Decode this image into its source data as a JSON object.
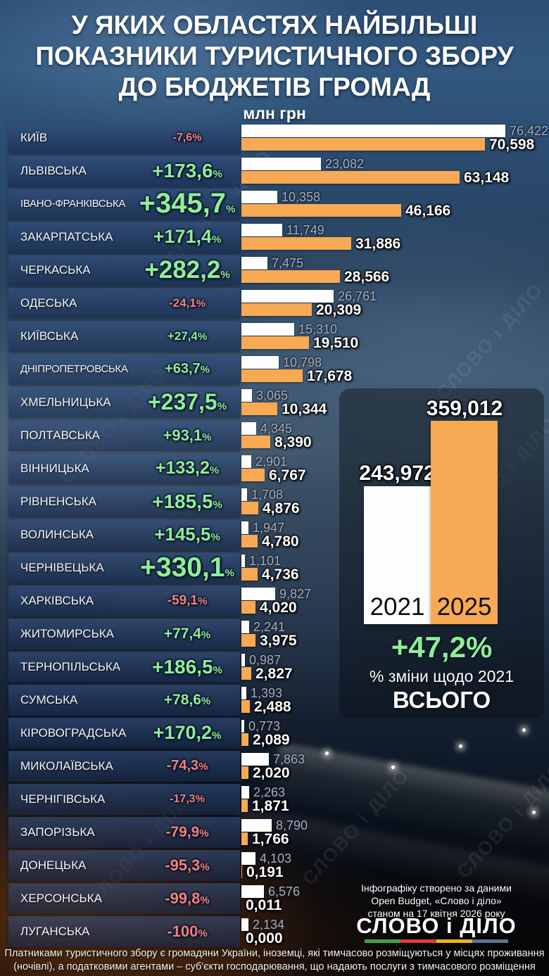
{
  "title": {
    "lines": [
      "У ЯКИХ ОБЛАСТЯХ НАЙБІЛЬШІ",
      "ПОКАЗНИКИ ТУРИСТИЧНОГО ЗБОРУ",
      "ДО БЮДЖЕТІВ ГРОМАД"
    ],
    "unit": "млн грн"
  },
  "watermark": "СЛОВО і ДІЛО",
  "chart_data": {
    "type": "bar",
    "title": "У яких областях найбільші показники туристичного збору до бюджетів громад",
    "unit": "млн грн",
    "categories": [
      "КИЇВ",
      "ЛЬВІВСЬКА",
      "ІВАНО-ФРАНКІВСЬКА",
      "ЗАКАРПАТСЬКА",
      "ЧЕРКАСЬКА",
      "ОДЕСЬКА",
      "КИЇВСЬКА",
      "ДНІПРОПЕТРОВСЬКА",
      "ХМЕЛЬНИЦЬКА",
      "ПОЛТАВСЬКА",
      "ВІННИЦЬКА",
      "РІВНЕНСЬКА",
      "ВОЛИНСЬКА",
      "ЧЕРНІВЕЦЬКА",
      "ХАРКІВСЬКА",
      "ЖИТОМИРСЬКА",
      "ТЕРНОПІЛЬСЬКА",
      "СУМСЬКА",
      "КІРОВОГРАДСЬКА",
      "МИКОЛАЇВСЬКА",
      "ЧЕРНІГІВСЬКА",
      "ЗАПОРІЗЬКА",
      "ДОНЕЦЬКА",
      "ХЕРСОНСЬКА",
      "ЛУГАНСЬКА"
    ],
    "series": [
      {
        "name": "2021",
        "color": "#fdfdfd",
        "values": [
          76.422,
          23.082,
          10.358,
          11.749,
          7.475,
          26.761,
          15.31,
          10.798,
          3.065,
          4.345,
          2.901,
          1.708,
          1.947,
          1.101,
          9.827,
          2.241,
          0.987,
          1.393,
          0.773,
          7.863,
          2.263,
          8.79,
          4.103,
          6.576,
          2.134
        ]
      },
      {
        "name": "2025",
        "color": "#f7a954",
        "values": [
          70.598,
          63.148,
          46.166,
          31.886,
          28.566,
          20.309,
          19.51,
          17.678,
          10.344,
          8.39,
          6.767,
          4.876,
          4.78,
          4.736,
          4.02,
          3.975,
          2.827,
          2.488,
          2.089,
          2.02,
          1.871,
          1.766,
          0.191,
          0.011,
          0.0
        ]
      }
    ],
    "change_pct": [
      -7.6,
      173.6,
      345.7,
      171.4,
      282.2,
      -24.1,
      27.4,
      63.7,
      237.5,
      93.1,
      133.2,
      185.5,
      145.5,
      330.1,
      -59.1,
      77.4,
      186.5,
      78.6,
      170.2,
      -74.3,
      -17.3,
      -79.9,
      -95.3,
      -99.8,
      -100
    ],
    "totals": {
      "y2021": 243.972,
      "y2025": 359.012,
      "change_pct": 47.2
    },
    "legend_position": "summary-panel",
    "grid": false
  },
  "summary": {
    "year_left": "2021",
    "year_right": "2025",
    "change_note": "% зміни щодо 2021",
    "total_label": "ВСЬОГО"
  },
  "credit": {
    "line1": "Інфографіку створено за даними",
    "line2": "Open Budget, «Слово і діло»",
    "line3": "станом на 17 квітня 2026 року"
  },
  "logo": {
    "text": "СЛОВО і ДІЛО",
    "underline_colors": [
      "#3fa44a",
      "#e03a36",
      "#eeb31b",
      "#5a7390"
    ]
  },
  "footer": "Платниками туристичного збору є громадяни України, іноземці, які тимчасово розміщуються у місцях проживання (ночівлі), а податковими агентами – суб'єкти господарювання, що надають послуги з тимчасового розміщення",
  "colors": {
    "orange": "#f7a954",
    "positive": "#8fee97",
    "negative": "#f4807e",
    "value_2021_text": "#a7aeb8",
    "plate_blue": "#22406e"
  }
}
